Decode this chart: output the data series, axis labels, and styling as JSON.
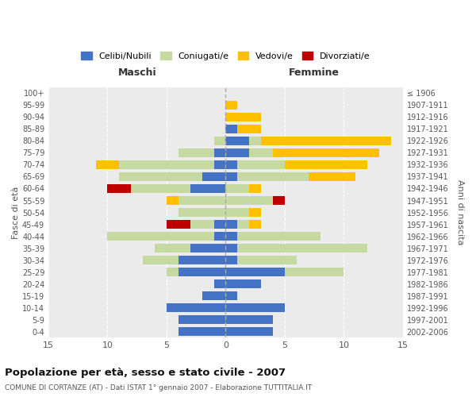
{
  "age_groups": [
    "0-4",
    "5-9",
    "10-14",
    "15-19",
    "20-24",
    "25-29",
    "30-34",
    "35-39",
    "40-44",
    "45-49",
    "50-54",
    "55-59",
    "60-64",
    "65-69",
    "70-74",
    "75-79",
    "80-84",
    "85-89",
    "90-94",
    "95-99",
    "100+"
  ],
  "birth_years": [
    "2002-2006",
    "1997-2001",
    "1992-1996",
    "1987-1991",
    "1982-1986",
    "1977-1981",
    "1972-1976",
    "1967-1971",
    "1962-1966",
    "1957-1961",
    "1952-1956",
    "1947-1951",
    "1942-1946",
    "1937-1941",
    "1932-1936",
    "1927-1931",
    "1922-1926",
    "1917-1921",
    "1912-1916",
    "1907-1911",
    "≤ 1906"
  ],
  "males": {
    "celibi": [
      4,
      4,
      5,
      2,
      1,
      4,
      4,
      3,
      1,
      1,
      0,
      0,
      3,
      2,
      1,
      1,
      0,
      0,
      0,
      0,
      0
    ],
    "coniugati": [
      0,
      0,
      0,
      0,
      0,
      1,
      3,
      3,
      9,
      2,
      4,
      4,
      5,
      7,
      8,
      3,
      1,
      0,
      0,
      0,
      0
    ],
    "vedovi": [
      0,
      0,
      0,
      0,
      0,
      0,
      0,
      0,
      0,
      0,
      0,
      1,
      0,
      0,
      2,
      0,
      0,
      0,
      0,
      0,
      0
    ],
    "divorziati": [
      0,
      0,
      0,
      0,
      0,
      0,
      0,
      0,
      0,
      2,
      0,
      0,
      2,
      0,
      0,
      0,
      0,
      0,
      0,
      0,
      0
    ]
  },
  "females": {
    "nubili": [
      4,
      4,
      5,
      1,
      3,
      5,
      1,
      1,
      1,
      1,
      0,
      0,
      0,
      1,
      1,
      2,
      2,
      1,
      0,
      0,
      0
    ],
    "coniugate": [
      0,
      0,
      0,
      0,
      0,
      5,
      5,
      11,
      7,
      1,
      2,
      4,
      2,
      6,
      4,
      2,
      1,
      0,
      0,
      0,
      0
    ],
    "vedove": [
      0,
      0,
      0,
      0,
      0,
      0,
      0,
      0,
      0,
      1,
      1,
      0,
      1,
      4,
      7,
      9,
      11,
      2,
      3,
      1,
      0
    ],
    "divorziate": [
      0,
      0,
      0,
      0,
      0,
      0,
      0,
      0,
      0,
      0,
      0,
      1,
      0,
      0,
      0,
      0,
      0,
      0,
      0,
      0,
      0
    ]
  },
  "colors": {
    "celibi": "#4472c4",
    "coniugati": "#c5d9a0",
    "vedovi": "#ffc000",
    "divorziati": "#c00000"
  },
  "legend_labels": [
    "Celibi/Nubili",
    "Coniugati/e",
    "Vedovi/e",
    "Divorziati/e"
  ],
  "title": "Popolazione per età, sesso e stato civile - 2007",
  "subtitle": "COMUNE DI CORTANZE (AT) - Dati ISTAT 1° gennaio 2007 - Elaborazione TUTTITALIA.IT",
  "xlabel_left": "Maschi",
  "xlabel_right": "Femmine",
  "ylabel_left": "Fasce di età",
  "ylabel_right": "Anni di nascita",
  "xlim": 15,
  "bg_color": "#ffffff",
  "plot_bg_color": "#ebebeb",
  "grid_color": "#ffffff"
}
